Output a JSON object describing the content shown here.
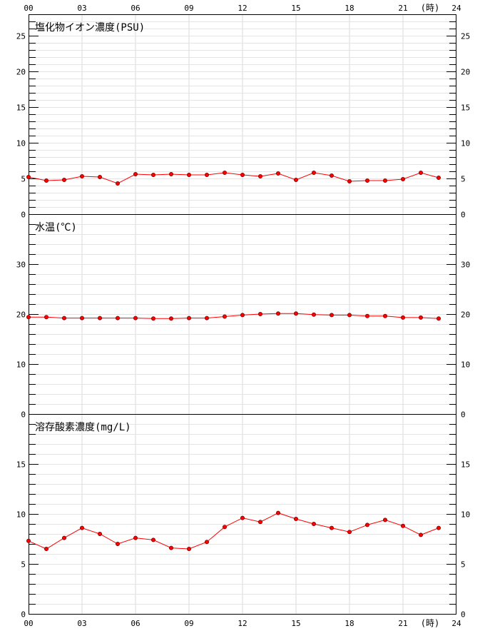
{
  "time_axis": {
    "ticks": [
      "00",
      "03",
      "06",
      "09",
      "12",
      "15",
      "18",
      "21",
      "24"
    ],
    "unit": "(時)",
    "range": [
      0,
      24
    ]
  },
  "chart_data": [
    {
      "type": "line",
      "title": "塩化物イオン濃度(PSU)",
      "ylim": [
        0,
        28
      ],
      "yticks": [
        0,
        5,
        10,
        15,
        20,
        25
      ],
      "minor_tick": 1,
      "grid": true,
      "x": [
        0,
        1,
        2,
        3,
        4,
        5,
        6,
        7,
        8,
        9,
        10,
        11,
        12,
        13,
        14,
        15,
        16,
        17,
        18,
        19,
        20,
        21,
        22,
        23
      ],
      "series": [
        {
          "color": "#ff0000",
          "values": [
            5.2,
            4.7,
            4.8,
            5.3,
            5.2,
            4.3,
            5.6,
            5.5,
            5.6,
            5.5,
            5.5,
            5.8,
            5.5,
            5.3,
            5.7,
            4.8,
            5.8,
            5.4,
            4.6,
            4.7,
            4.7,
            4.9,
            5.8,
            5.1
          ]
        }
      ]
    },
    {
      "type": "line",
      "title": "水温(℃)",
      "ylim": [
        0,
        40
      ],
      "yticks": [
        0,
        10,
        20,
        30
      ],
      "minor_tick": 2,
      "grid": true,
      "x": [
        0,
        1,
        2,
        3,
        4,
        5,
        6,
        7,
        8,
        9,
        10,
        11,
        12,
        13,
        14,
        15,
        16,
        17,
        18,
        19,
        20,
        21,
        22,
        23
      ],
      "series": [
        {
          "color": "#ff0000",
          "values": [
            19.4,
            19.4,
            19.2,
            19.2,
            19.2,
            19.2,
            19.2,
            19.1,
            19.1,
            19.2,
            19.2,
            19.5,
            19.8,
            20.0,
            20.1,
            20.1,
            19.9,
            19.8,
            19.8,
            19.6,
            19.6,
            19.3,
            19.3,
            19.1
          ]
        }
      ]
    },
    {
      "type": "line",
      "title": "溶存酸素濃度(mg/L)",
      "ylim": [
        0,
        20
      ],
      "yticks": [
        0,
        5,
        10,
        15
      ],
      "minor_tick": 1,
      "grid": true,
      "x": [
        0,
        1,
        2,
        3,
        4,
        5,
        6,
        7,
        8,
        9,
        10,
        11,
        12,
        13,
        14,
        15,
        16,
        17,
        18,
        19,
        20,
        21,
        22,
        23
      ],
      "series": [
        {
          "color": "#ff0000",
          "values": [
            7.3,
            6.5,
            7.6,
            8.6,
            8.0,
            7.0,
            7.6,
            7.4,
            6.6,
            6.5,
            7.2,
            8.7,
            9.6,
            9.2,
            10.1,
            9.5,
            9.0,
            8.6,
            8.2,
            8.9,
            9.4,
            8.8,
            7.9,
            8.6
          ]
        }
      ]
    }
  ]
}
